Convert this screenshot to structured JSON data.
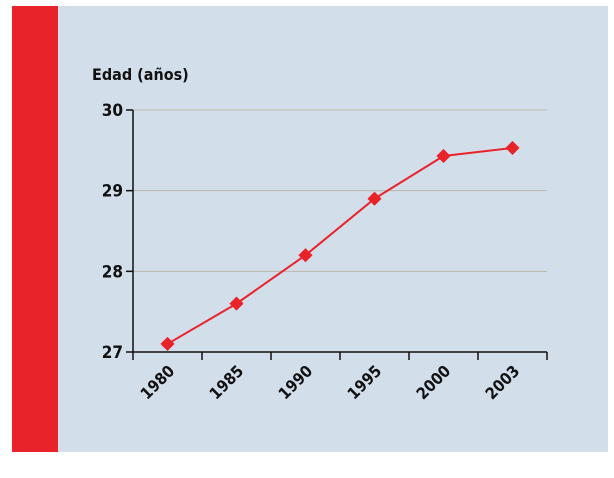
{
  "chart_data": {
    "type": "line",
    "y_label": "Edad (años)",
    "categories": [
      "1980",
      "1985",
      "1990",
      "1995",
      "2000",
      "2003"
    ],
    "values": [
      27.1,
      27.6,
      28.2,
      28.9,
      29.43,
      29.53
    ],
    "color": "#e8242a",
    "ylim": [
      27,
      30
    ],
    "yticks": [
      27,
      28,
      29,
      30
    ],
    "grid": true
  }
}
